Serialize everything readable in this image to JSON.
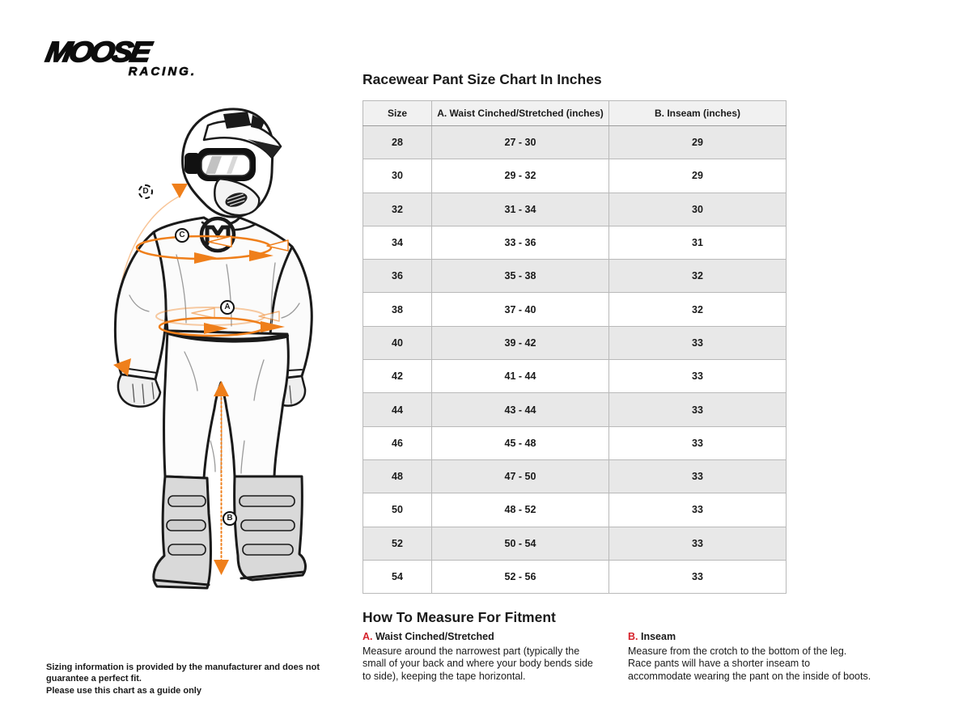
{
  "brand": {
    "line1": "MOOSE",
    "line2": "RACING."
  },
  "chart_title": "Racewear Pant Size Chart In Inches",
  "chart_data": {
    "type": "table",
    "title": "Racewear Pant Size Chart In Inches",
    "columns": [
      "Size",
      "A. Waist Cinched/Stretched (inches)",
      "B. Inseam (inches)"
    ],
    "rows": [
      [
        "28",
        "27 - 30",
        "29"
      ],
      [
        "30",
        "29 - 32",
        "29"
      ],
      [
        "32",
        "31 - 34",
        "30"
      ],
      [
        "34",
        "33 - 36",
        "31"
      ],
      [
        "36",
        "35 - 38",
        "32"
      ],
      [
        "38",
        "37 - 40",
        "32"
      ],
      [
        "40",
        "39 - 42",
        "33"
      ],
      [
        "42",
        "41 - 44",
        "33"
      ],
      [
        "44",
        "43 - 44",
        "33"
      ],
      [
        "46",
        "45 - 48",
        "33"
      ],
      [
        "48",
        "47 - 50",
        "33"
      ],
      [
        "50",
        "48 - 52",
        "33"
      ],
      [
        "52",
        "50 - 54",
        "33"
      ],
      [
        "54",
        "52 - 56",
        "33"
      ]
    ]
  },
  "diagram": {
    "labels": [
      {
        "letter": "D"
      },
      {
        "letter": "C"
      },
      {
        "letter": "A"
      },
      {
        "letter": "B"
      }
    ]
  },
  "how_to": {
    "title": "How To Measure For Fitment",
    "items": [
      {
        "letter": "A.",
        "name": "Waist Cinched/Stretched",
        "text": "Measure around the narrowest part (typically the small of your back and where your body bends side to side), keeping the tape horizontal."
      },
      {
        "letter": "B.",
        "name": "Inseam",
        "text": "Measure from the crotch to the bottom of the leg. Race pants will have a shorter inseam to accommodate wearing the pant on the inside of boots."
      }
    ]
  },
  "disclaimer": {
    "line1": "Sizing information is provided by the manufacturer and does not guarantee a perfect fit.",
    "line2": "Please use this chart as a guide only"
  },
  "colors": {
    "accent_orange": "#EF7F1B",
    "accent_red": "#D6222B"
  }
}
